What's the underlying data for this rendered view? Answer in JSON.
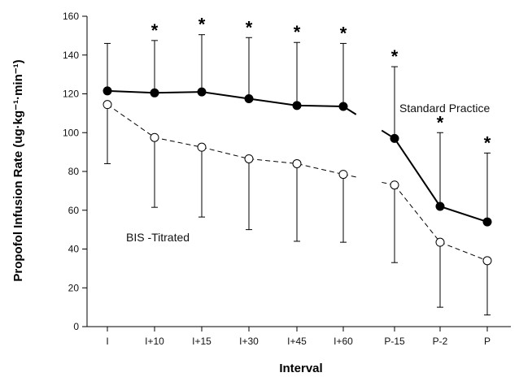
{
  "chart_data": {
    "type": "line",
    "xlabel": "Interval",
    "ylabel": "Propofol Infusion Rate (ug·kg⁻¹·min⁻¹)",
    "categories": [
      "I",
      "I+10",
      "I+15",
      "I+30",
      "I+45",
      "I+60",
      "P-15",
      "P-2",
      "P"
    ],
    "ylim": [
      0,
      160
    ],
    "yticks": [
      0,
      20,
      40,
      60,
      80,
      100,
      120,
      140,
      160
    ],
    "grid": false,
    "significance_marker": "*",
    "significant_categories": [
      "I+10",
      "I+15",
      "I+30",
      "I+45",
      "I+60",
      "P-15",
      "P-2",
      "P"
    ],
    "series": [
      {
        "name": "Standard Practice",
        "marker": "filled-circle",
        "line_style": "solid",
        "values": [
          121.5,
          120.5,
          121,
          117.5,
          114,
          113.5,
          97,
          62,
          54
        ],
        "error_upper": [
          146,
          147.5,
          150.5,
          149,
          146.5,
          146,
          134,
          100,
          89.5
        ]
      },
      {
        "name": "BIS -Titrated",
        "marker": "open-circle",
        "line_style": "dashed",
        "values": [
          114.5,
          97.5,
          92.5,
          86.5,
          84,
          78.5,
          73,
          43.5,
          34
        ],
        "error_lower": [
          84,
          61.5,
          56.5,
          50,
          44,
          43.5,
          33,
          10,
          6
        ]
      }
    ]
  }
}
